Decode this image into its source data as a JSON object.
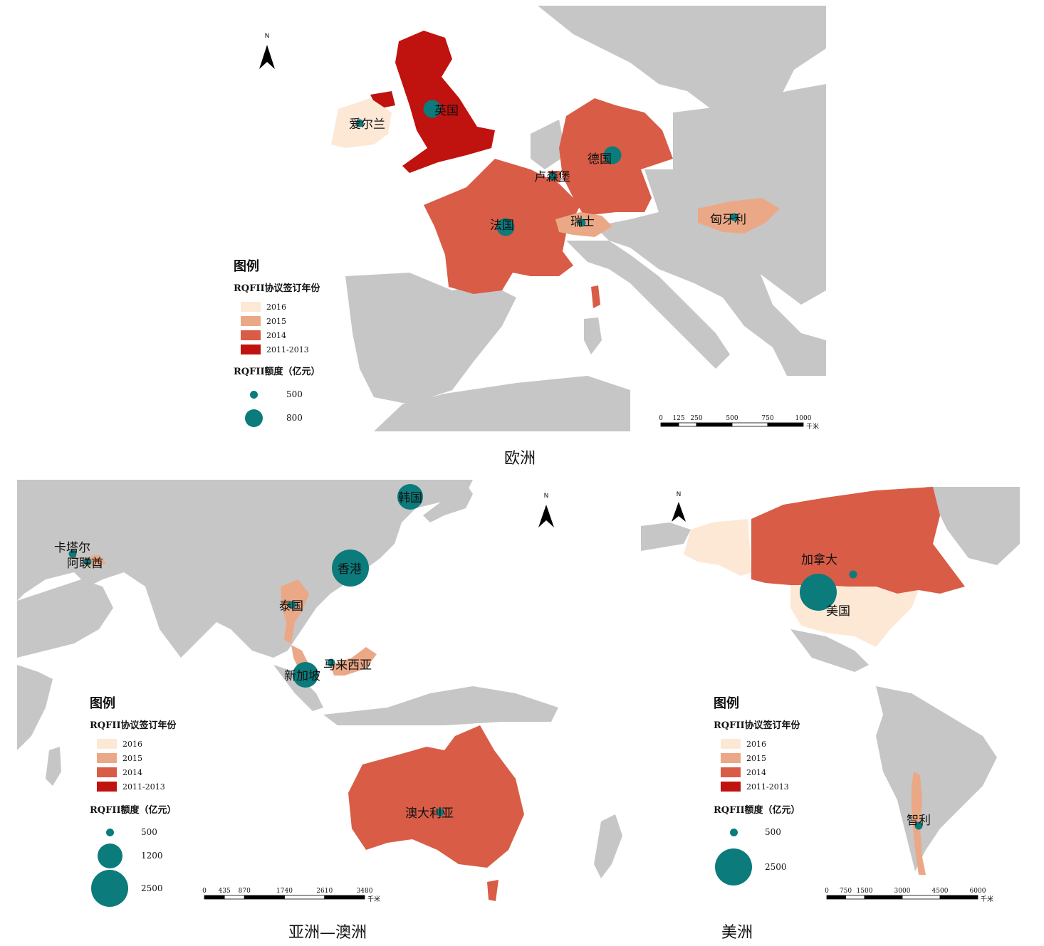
{
  "colors": {
    "y2016": "#fde8d6",
    "y2015": "#eba886",
    "y2014": "#d95c46",
    "y2011_2013": "#c0120f",
    "other": "#c6c6c6",
    "sea": "#ffffff",
    "bubble": "#0b7b7b"
  },
  "panels": {
    "europe": {
      "caption": "欧洲",
      "north": "N",
      "countries": [
        {
          "name": "英国",
          "year": "2011-2013",
          "quota": 800
        },
        {
          "name": "爱尔兰",
          "year": "2016",
          "quota": 500
        },
        {
          "name": "德国",
          "year": "2014",
          "quota": 800
        },
        {
          "name": "卢森堡",
          "year": "2014",
          "quota": 500
        },
        {
          "name": "法国",
          "year": "2014",
          "quota": 800
        },
        {
          "name": "瑞士",
          "year": "2015",
          "quota": 500
        },
        {
          "name": "匈牙利",
          "year": "2015",
          "quota": 500
        }
      ],
      "legend": {
        "title": "图例",
        "year_title": "RQFII协议签订年份",
        "years": [
          "2016",
          "2015",
          "2014",
          "2011-2013"
        ],
        "quota_title": "RQFII额度（亿元）",
        "quotas": [
          500,
          800
        ]
      },
      "scale": {
        "ticks": [
          "0",
          "125",
          "250",
          "500",
          "750",
          "1000"
        ],
        "unit": "千米"
      }
    },
    "asia": {
      "caption": "亚洲—澳洲",
      "north": "N",
      "countries": [
        {
          "name": "韩国",
          "year": "2014",
          "quota": 1200
        },
        {
          "name": "香港",
          "year": "2011-2013",
          "quota": 2500
        },
        {
          "name": "卡塔尔",
          "year": "2014",
          "quota": 500
        },
        {
          "name": "阿联酋",
          "year": "2015",
          "quota": 500
        },
        {
          "name": "泰国",
          "year": "2015",
          "quota": 500
        },
        {
          "name": "新加坡",
          "year": "2014",
          "quota": 1200
        },
        {
          "name": "马来西亚",
          "year": "2015",
          "quota": 500
        },
        {
          "name": "澳大利亚",
          "year": "2014",
          "quota": 500
        }
      ],
      "legend": {
        "title": "图例",
        "year_title": "RQFII协议签订年份",
        "years": [
          "2016",
          "2015",
          "2014",
          "2011-2013"
        ],
        "quota_title": "RQFII额度（亿元）",
        "quotas": [
          500,
          1200,
          2500
        ]
      },
      "scale": {
        "ticks": [
          "0",
          "435",
          "870",
          "1740",
          "2610",
          "3480"
        ],
        "unit": "千米"
      }
    },
    "america": {
      "caption": "美洲",
      "north": "N",
      "countries": [
        {
          "name": "加拿大",
          "year": "2014",
          "quota": 500
        },
        {
          "name": "美国",
          "year": "2016",
          "quota": 2500
        },
        {
          "name": "智利",
          "year": "2015",
          "quota": 500
        }
      ],
      "legend": {
        "title": "图例",
        "year_title": "RQFII协议签订年份",
        "years": [
          "2016",
          "2015",
          "2014",
          "2011-2013"
        ],
        "quota_title": "RQFII额度（亿元）",
        "quotas": [
          500,
          2500
        ]
      },
      "scale": {
        "ticks": [
          "0",
          "750",
          "1500",
          "3000",
          "4500",
          "6000"
        ],
        "unit": "千米"
      }
    }
  }
}
